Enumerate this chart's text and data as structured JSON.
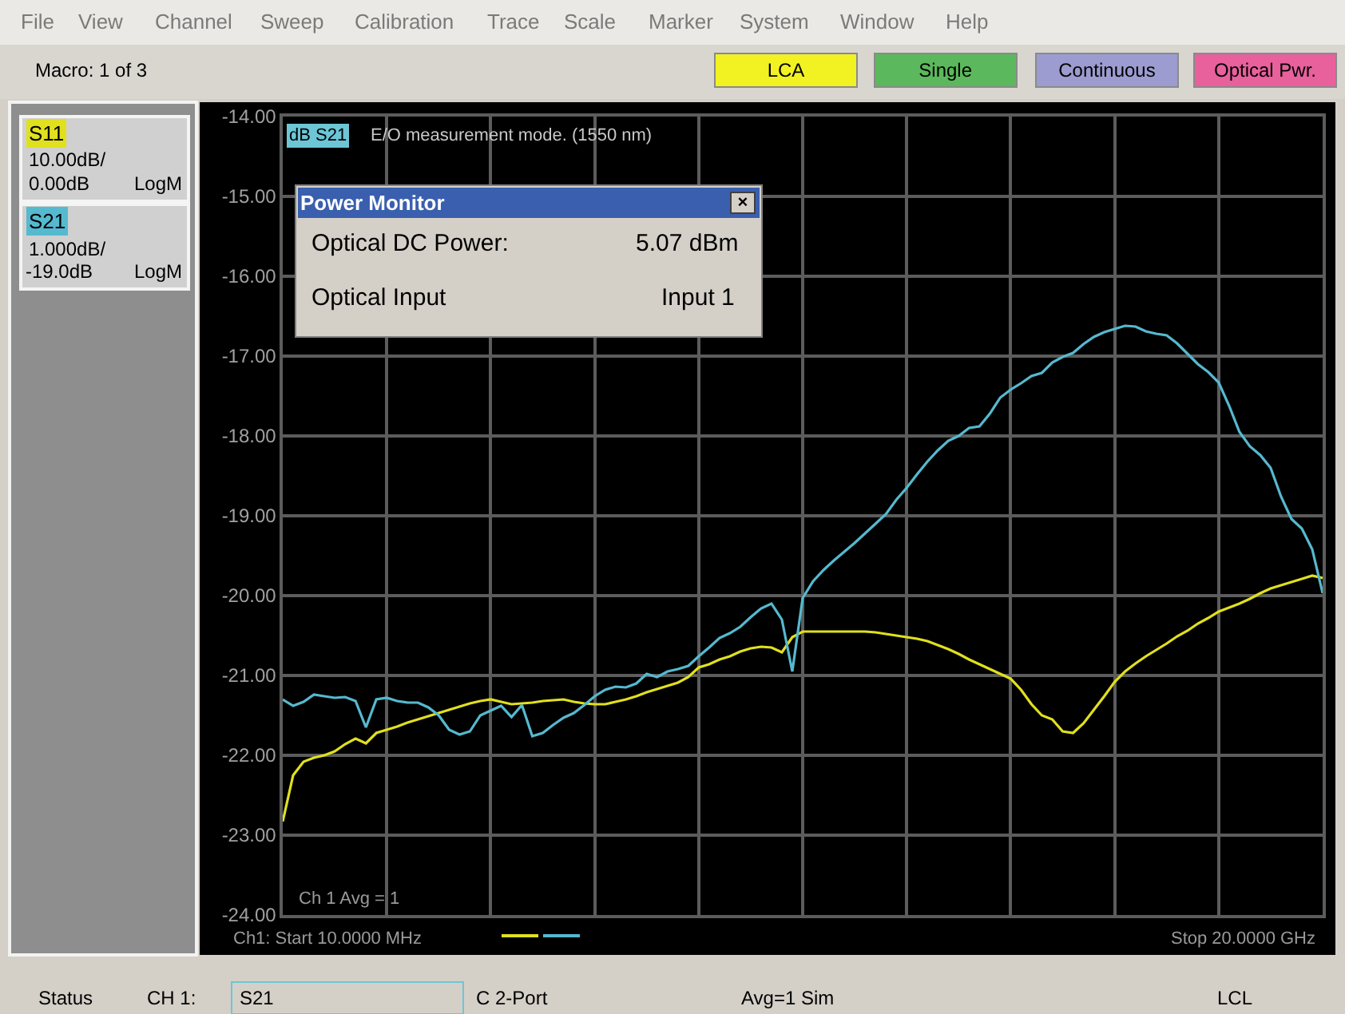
{
  "chart_data": {
    "type": "line",
    "categories": [
      null,
      null,
      null,
      null,
      null,
      null,
      null,
      null,
      null,
      null,
      null,
      null,
      null,
      null,
      null,
      null,
      null,
      null,
      null,
      null,
      null,
      null,
      null,
      null,
      null,
      null,
      null,
      null,
      null,
      null,
      null,
      null,
      null,
      null,
      null,
      null,
      null,
      null,
      null,
      null,
      null,
      null,
      null,
      null,
      null,
      null,
      null,
      null,
      null,
      null,
      null,
      null,
      null,
      null,
      null,
      null,
      null,
      null,
      null,
      null,
      null,
      null,
      null,
      null,
      null,
      null,
      null,
      null,
      null,
      null,
      null,
      null,
      null,
      null,
      null,
      null,
      null,
      null,
      null,
      null,
      null,
      null,
      null,
      null,
      null,
      null,
      null,
      null,
      null,
      null,
      null,
      null,
      null,
      null,
      null,
      null,
      null,
      null,
      null,
      null,
      null
    ],
    "series": [
      {
        "name": "S11",
        "color": "#e1e01e",
        "values": [
          -22.83,
          -22.25,
          -22.08,
          -22.03,
          -22.0,
          -21.95,
          -21.86,
          -21.79,
          -21.85,
          -21.72,
          -21.68,
          -21.64,
          -21.59,
          -21.55,
          -21.51,
          -21.47,
          -21.43,
          -21.39,
          -21.35,
          -21.32,
          -21.3,
          -21.33,
          -21.36,
          -21.35,
          -21.34,
          -21.32,
          -21.31,
          -21.3,
          -21.33,
          -21.35,
          -21.36,
          -21.36,
          -21.33,
          -21.3,
          -21.26,
          -21.21,
          -21.17,
          -21.13,
          -21.09,
          -21.02,
          -20.9,
          -20.86,
          -20.8,
          -20.76,
          -20.7,
          -20.66,
          -20.64,
          -20.65,
          -20.71,
          -20.52,
          -20.45,
          -20.45,
          -20.45,
          -20.45,
          -20.45,
          -20.45,
          -20.45,
          -20.46,
          -20.48,
          -20.5,
          -20.52,
          -20.54,
          -20.57,
          -20.62,
          -20.67,
          -20.73,
          -20.8,
          -20.86,
          -20.92,
          -20.98,
          -21.04,
          -21.18,
          -21.36,
          -21.5,
          -21.55,
          -21.7,
          -21.72,
          -21.6,
          -21.43,
          -21.26,
          -21.08,
          -20.95,
          -20.85,
          -20.76,
          -20.68,
          -20.6,
          -20.51,
          -20.44,
          -20.35,
          -20.28,
          -20.2,
          -20.15,
          -20.1,
          -20.04,
          -19.97,
          -19.91,
          -19.87,
          -19.83,
          -19.79,
          -19.75,
          -19.78
        ]
      },
      {
        "name": "S21",
        "color": "#55b9cf",
        "values": [
          -21.3,
          -21.38,
          -21.33,
          -21.24,
          -21.26,
          -21.28,
          -21.27,
          -21.32,
          -21.65,
          -21.3,
          -21.28,
          -21.32,
          -21.34,
          -21.34,
          -21.4,
          -21.5,
          -21.68,
          -21.74,
          -21.7,
          -21.5,
          -21.44,
          -21.38,
          -21.52,
          -21.37,
          -21.76,
          -21.72,
          -21.62,
          -21.53,
          -21.47,
          -21.37,
          -21.26,
          -21.18,
          -21.14,
          -21.15,
          -21.1,
          -20.98,
          -21.02,
          -20.95,
          -20.92,
          -20.88,
          -20.76,
          -20.65,
          -20.53,
          -20.47,
          -20.39,
          -20.27,
          -20.16,
          -20.1,
          -20.3,
          -20.95,
          -20.03,
          -19.82,
          -19.68,
          -19.56,
          -19.45,
          -19.34,
          -19.22,
          -19.1,
          -18.98,
          -18.8,
          -18.65,
          -18.48,
          -18.32,
          -18.18,
          -18.06,
          -18.0,
          -17.9,
          -17.88,
          -17.72,
          -17.52,
          -17.42,
          -17.34,
          -17.25,
          -17.21,
          -17.08,
          -17.01,
          -16.96,
          -16.85,
          -16.76,
          -16.7,
          -16.66,
          -16.62,
          -16.63,
          -16.69,
          -16.72,
          -16.74,
          -16.84,
          -16.97,
          -17.1,
          -17.2,
          -17.33,
          -17.62,
          -17.95,
          -18.13,
          -18.24,
          -18.4,
          -18.76,
          -19.04,
          -19.16,
          -19.42,
          -19.97
        ]
      }
    ],
    "ylim": [
      -24,
      -14
    ],
    "yticks": [
      {
        "value": -14,
        "label": "-14.00"
      },
      {
        "value": -15,
        "label": "-15.00"
      },
      {
        "value": -16,
        "label": "-16.00"
      },
      {
        "value": -17,
        "label": "-17.00"
      },
      {
        "value": -18,
        "label": "-18.00"
      },
      {
        "value": -19,
        "label": "-19.00"
      },
      {
        "value": -20,
        "label": "-20.00"
      },
      {
        "value": -21,
        "label": "-21.00"
      },
      {
        "value": -22,
        "label": "-22.00"
      },
      {
        "value": -23,
        "label": "-23.00"
      },
      {
        "value": -24,
        "label": "-24.00"
      }
    ],
    "grid": true,
    "legend": "left",
    "tick_labels": "y",
    "annotations": [
      "File",
      "View",
      "Channel",
      "Sweep",
      "Calibration",
      "Trace",
      "Scale",
      "Marker",
      "System",
      "Window",
      "Help",
      "Macro: 1 of 3",
      "LCA",
      "Single",
      "Continuous",
      "Optical Pwr.",
      "10.00dB/",
      "0.00dB",
      "LogM",
      "1.000dB/",
      "-19.0dB",
      "LogM",
      "dB S21",
      "E/O measurement mode. (1550 nm)",
      "Power Monitor",
      "×",
      "Optical DC Power:",
      "5.07 dBm",
      "Optical Input",
      "Input 1",
      "Ch 1 Avg = 1",
      "Ch1: Start 10.0000 MHz",
      "Stop 20.0000 GHz",
      "Status",
      "CH 1:",
      "S21",
      "C 2-Port",
      "Avg=1 Sim",
      "LCL"
    ]
  }
}
